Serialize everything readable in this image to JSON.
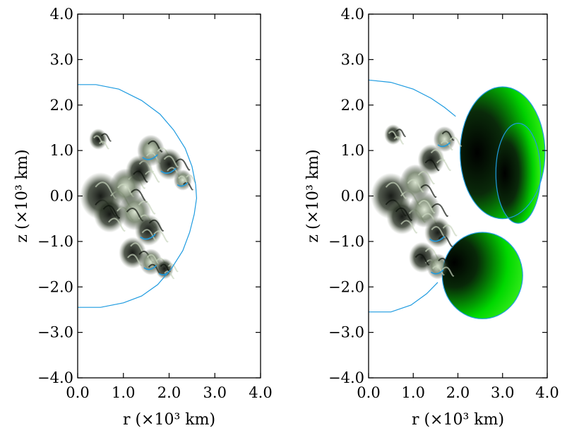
{
  "chart_data": [
    {
      "type": "scatter",
      "panel": "left",
      "xlabel": "r (×10³ km)",
      "ylabel": "z (×10³ km)",
      "xlim": [
        0.0,
        4.0
      ],
      "ylim": [
        -4.0,
        4.0
      ],
      "xticks": [
        "0.0",
        "1.0",
        "2.0",
        "3.0",
        "4.0"
      ],
      "yticks": [
        "4.0",
        "3.0",
        "2.0",
        "1.0",
        "0.0",
        "−1.0",
        "−2.0",
        "−3.0",
        "−4.0"
      ],
      "grid": false,
      "colors": {
        "front": "#1e9be0",
        "ash_dark": "#1a1f18",
        "ash_light": "#b9c6ad"
      },
      "front_contour": {
        "description_units": "data units (10^3 km)",
        "r": [
          0.0,
          0.4,
          0.9,
          1.4,
          1.8,
          2.1,
          2.35,
          2.5,
          2.58,
          2.6,
          2.55,
          2.45,
          2.3,
          2.05,
          1.75,
          1.4,
          1.0,
          0.5,
          0.0
        ],
        "z": [
          2.45,
          2.45,
          2.35,
          2.1,
          1.8,
          1.45,
          1.05,
          0.65,
          0.25,
          -0.05,
          -0.4,
          -0.8,
          -1.2,
          -1.6,
          -1.95,
          -2.2,
          -2.35,
          -2.45,
          -2.45
        ]
      },
      "ash_blobs": [
        {
          "r": 0.5,
          "z": 0.0,
          "s": 0.45,
          "tone": "dark"
        },
        {
          "r": 0.7,
          "z": -0.4,
          "s": 0.35,
          "tone": "dark"
        },
        {
          "r": 0.45,
          "z": 1.25,
          "s": 0.2,
          "tone": "dark"
        },
        {
          "r": 1.05,
          "z": 0.2,
          "s": 0.35,
          "tone": "light"
        },
        {
          "r": 1.35,
          "z": 0.55,
          "s": 0.3,
          "tone": "dark"
        },
        {
          "r": 1.6,
          "z": 1.0,
          "s": 0.3,
          "tone": "light"
        },
        {
          "r": 2.0,
          "z": 0.7,
          "s": 0.3,
          "tone": "dark"
        },
        {
          "r": 2.3,
          "z": 0.35,
          "s": 0.2,
          "tone": "light"
        },
        {
          "r": 1.25,
          "z": -0.35,
          "s": 0.35,
          "tone": "light"
        },
        {
          "r": 1.55,
          "z": -0.75,
          "s": 0.3,
          "tone": "dark"
        },
        {
          "r": 1.2,
          "z": -1.25,
          "s": 0.3,
          "tone": "dark"
        },
        {
          "r": 1.6,
          "z": -1.45,
          "s": 0.25,
          "tone": "light"
        },
        {
          "r": 1.9,
          "z": -1.6,
          "s": 0.2,
          "tone": "dark"
        }
      ]
    },
    {
      "type": "scatter",
      "panel": "right",
      "xlabel": "r (×10³ km)",
      "ylabel": "z (×10³ km)",
      "xlim": [
        0.0,
        4.0
      ],
      "ylim": [
        -4.0,
        4.0
      ],
      "xticks": [
        "0.0",
        "1.0",
        "2.0",
        "3.0",
        "4.0"
      ],
      "yticks": [
        "4.0",
        "3.0",
        "2.0",
        "1.0",
        "0.0",
        "−1.0",
        "−2.0",
        "−3.0",
        "−4.0"
      ],
      "grid": false,
      "colors": {
        "front": "#1e9be0",
        "detonation_inner": "#000000",
        "detonation_mid": "#00e000",
        "detonation_edge": "#ff1010"
      },
      "front_contour": {
        "r": [
          0.0,
          0.5,
          1.0,
          1.4,
          1.7,
          1.95
        ],
        "z": [
          2.55,
          2.5,
          2.35,
          2.15,
          1.95,
          1.75
        ]
      },
      "front_contour_bottom": {
        "r": [
          0.0,
          0.5,
          0.95,
          1.3,
          1.55
        ],
        "z": [
          -2.55,
          -2.55,
          -2.4,
          -2.15,
          -1.9
        ]
      },
      "detonation_bubbles": [
        {
          "label": "upper",
          "r": 3.0,
          "z": 0.95,
          "radius_r": 0.95,
          "radius_z": 1.45
        },
        {
          "label": "upper-outer",
          "r": 3.35,
          "z": 0.5,
          "radius_r": 0.5,
          "radius_z": 1.1
        },
        {
          "label": "lower",
          "r": 2.55,
          "z": -1.75,
          "radius_r": 0.9,
          "radius_z": 0.95
        }
      ],
      "ash_blobs": [
        {
          "r": 0.5,
          "z": 0.0,
          "s": 0.45,
          "tone": "dark"
        },
        {
          "r": 0.75,
          "z": -0.45,
          "s": 0.35,
          "tone": "dark"
        },
        {
          "r": 0.55,
          "z": 1.35,
          "s": 0.2,
          "tone": "dark"
        },
        {
          "r": 1.05,
          "z": 0.3,
          "s": 0.35,
          "tone": "light"
        },
        {
          "r": 1.4,
          "z": 0.8,
          "s": 0.3,
          "tone": "dark"
        },
        {
          "r": 1.7,
          "z": 1.25,
          "s": 0.25,
          "tone": "light"
        },
        {
          "r": 1.25,
          "z": -0.3,
          "s": 0.35,
          "tone": "light"
        },
        {
          "r": 1.55,
          "z": -0.8,
          "s": 0.3,
          "tone": "dark"
        },
        {
          "r": 1.2,
          "z": -1.35,
          "s": 0.3,
          "tone": "dark"
        },
        {
          "r": 1.55,
          "z": -1.55,
          "s": 0.25,
          "tone": "light"
        }
      ]
    }
  ]
}
